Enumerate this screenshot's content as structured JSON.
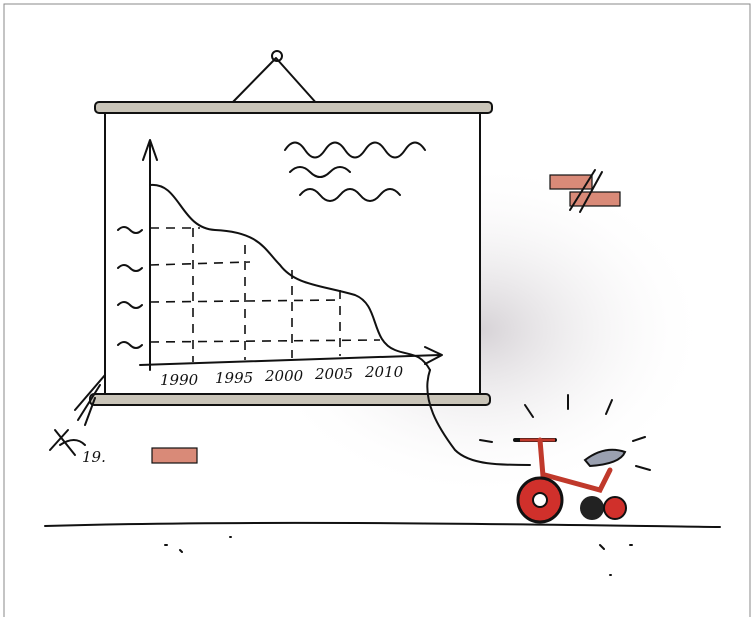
{
  "screen": {
    "x_labels": [
      "1990",
      "1995",
      "2000",
      "2005",
      "2010"
    ]
  },
  "signature": "19."
}
